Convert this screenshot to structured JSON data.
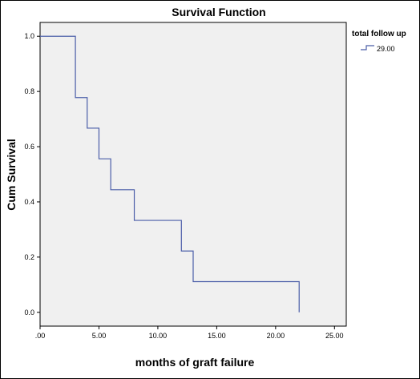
{
  "chart_data": {
    "type": "line",
    "title": "Survival Function",
    "xlabel": "months of graft failure",
    "ylabel": "Cum Survival",
    "xlim": [
      0,
      26
    ],
    "ylim": [
      -0.05,
      1.05
    ],
    "x_ticks": [
      0,
      5,
      10,
      15,
      20,
      25
    ],
    "x_tick_labels": [
      ".00",
      "5.00",
      "10.00",
      "15.00",
      "20.00",
      "25.00"
    ],
    "y_ticks": [
      0,
      0.2,
      0.4,
      0.6,
      0.8,
      1.0
    ],
    "y_tick_labels": [
      "0.0",
      "0.2",
      "0.4",
      "0.6",
      "0.8",
      "1.0"
    ],
    "grid": false,
    "legend": {
      "title": "total follow up",
      "position": "right",
      "entries": [
        "29.00"
      ]
    },
    "series": [
      {
        "name": "29.00",
        "step": true,
        "color": "#4a5da8",
        "x": [
          0,
          3,
          4,
          5,
          6,
          8,
          12,
          13,
          22,
          22
        ],
        "y": [
          1.0,
          0.778,
          0.667,
          0.556,
          0.444,
          0.333,
          0.222,
          0.111,
          0.111,
          0.0
        ]
      }
    ],
    "plot_background": "#f0f0f0"
  }
}
